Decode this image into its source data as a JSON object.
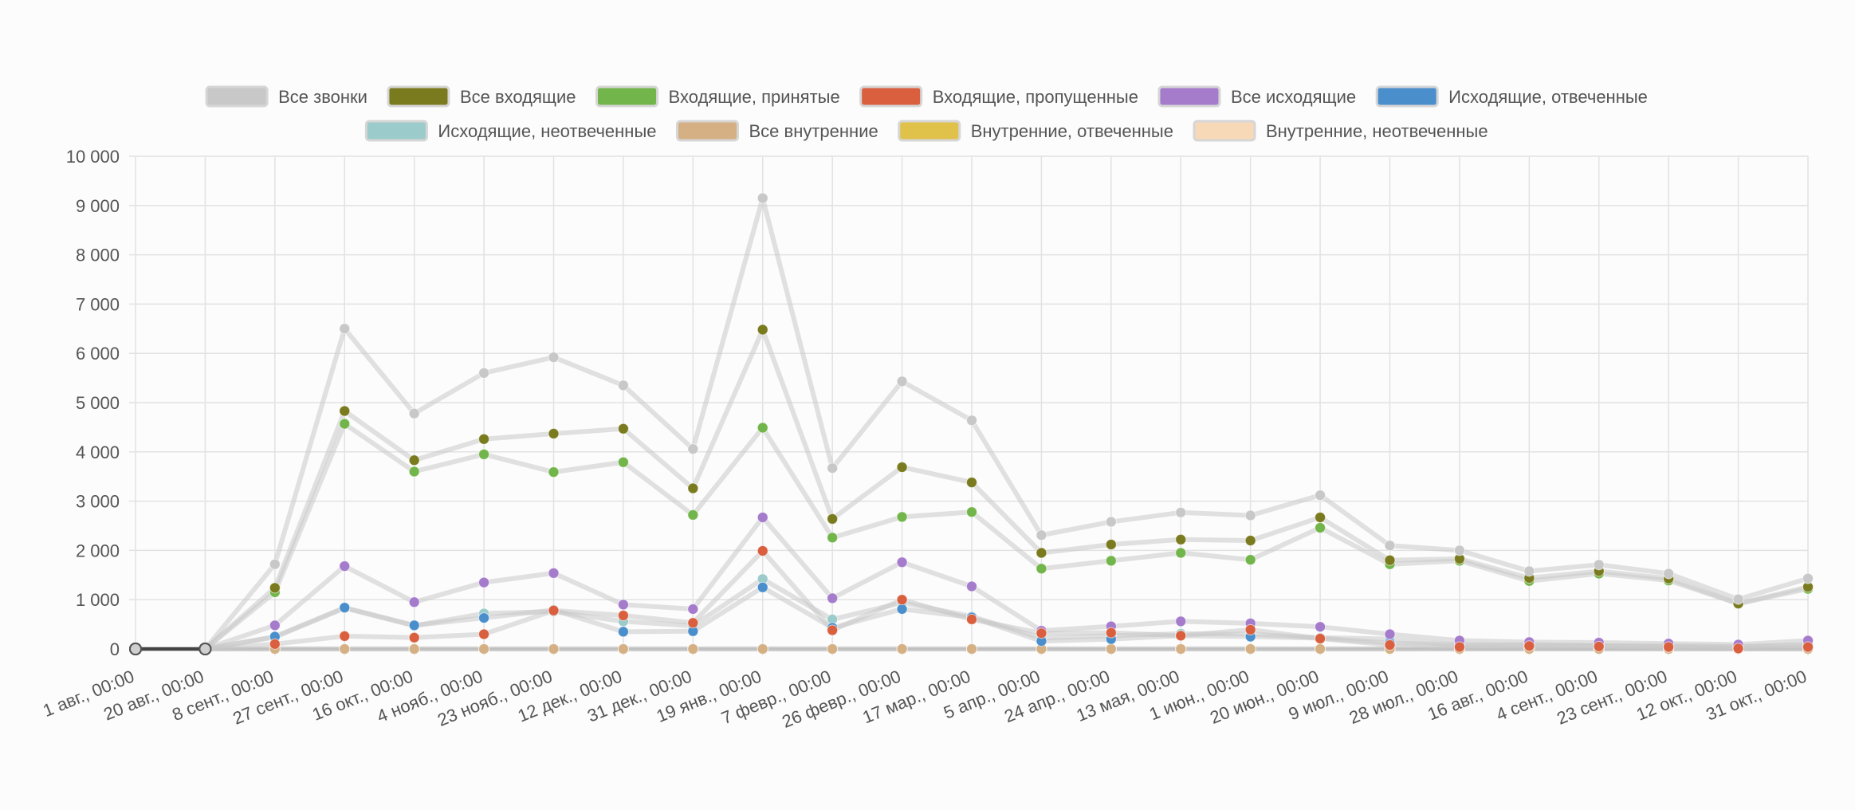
{
  "chart_data": {
    "type": "line",
    "title": "",
    "xlabel": "",
    "ylabel": "",
    "ylim": [
      0,
      10000
    ],
    "yticks": [
      0,
      1000,
      2000,
      3000,
      4000,
      5000,
      6000,
      7000,
      8000,
      9000,
      10000
    ],
    "ytick_labels": [
      "0",
      "1 000",
      "2 000",
      "3 000",
      "4 000",
      "5 000",
      "6 000",
      "7 000",
      "8 000",
      "9 000",
      "10 000"
    ],
    "grid": true,
    "legend_position": "top",
    "categories": [
      "1 авг., 00:00",
      "20 авг., 00:00",
      "8 сент., 00:00",
      "27 сент., 00:00",
      "16 окт., 00:00",
      "4 нояб., 00:00",
      "23 нояб., 00:00",
      "12 дек., 00:00",
      "31 дек., 00:00",
      "19 янв., 00:00",
      "7 февр., 00:00",
      "26 февр., 00:00",
      "17 мар., 00:00",
      "5 апр., 00:00",
      "24 апр., 00:00",
      "13 мая, 00:00",
      "1 июн., 00:00",
      "20 июн., 00:00",
      "9 июл., 00:00",
      "28 июл., 00:00",
      "16 авг., 00:00",
      "4 сент., 00:00",
      "23 сент., 00:00",
      "12 окт., 00:00",
      "31 окт., 00:00"
    ],
    "series": [
      {
        "name": "Все звонки",
        "color": "#c8c8c8",
        "values": [
          0,
          0,
          1720,
          6500,
          4780,
          5600,
          5920,
          5350,
          4060,
          9150,
          3670,
          5430,
          4640,
          2310,
          2580,
          2770,
          2710,
          3120,
          2100,
          2000,
          1580,
          1710,
          1530,
          1010,
          1430
        ]
      },
      {
        "name": "Все входящие",
        "color": "#7a7a1f",
        "values": [
          0,
          0,
          1240,
          4830,
          3830,
          4260,
          4370,
          4470,
          3260,
          6480,
          2640,
          3690,
          3380,
          1950,
          2120,
          2220,
          2200,
          2670,
          1800,
          1830,
          1440,
          1580,
          1430,
          920,
          1260
        ]
      },
      {
        "name": "Входящие, принятые",
        "color": "#72b54a",
        "values": [
          0,
          0,
          1150,
          4570,
          3600,
          3950,
          3590,
          3790,
          2720,
          4490,
          2260,
          2680,
          2780,
          1630,
          1790,
          1950,
          1810,
          2460,
          1720,
          1790,
          1380,
          1530,
          1390,
          920,
          1220
        ]
      },
      {
        "name": "Входящие, пропущенные",
        "color": "#d95f3e",
        "values": [
          0,
          0,
          100,
          260,
          230,
          300,
          780,
          680,
          530,
          1990,
          380,
          1000,
          600,
          320,
          330,
          270,
          390,
          210,
          80,
          40,
          60,
          50,
          40,
          10,
          40
        ]
      },
      {
        "name": "Все исходящие",
        "color": "#a57bcc",
        "values": [
          0,
          0,
          480,
          1680,
          950,
          1350,
          1540,
          900,
          810,
          2670,
          1030,
          1760,
          1270,
          370,
          460,
          560,
          520,
          450,
          300,
          170,
          140,
          130,
          110,
          90,
          170
        ]
      },
      {
        "name": "Исходящие, отвеченные",
        "color": "#4a8fcc",
        "values": [
          0,
          0,
          250,
          840,
          480,
          630,
          790,
          350,
          360,
          1250,
          430,
          810,
          640,
          160,
          200,
          270,
          250,
          220,
          120,
          90,
          90,
          70,
          70,
          50,
          80
        ]
      },
      {
        "name": "Исходящие, неотвеченные",
        "color": "#9ccbcb",
        "values": [
          0,
          0,
          240,
          830,
          470,
          720,
          760,
          560,
          470,
          1420,
          600,
          940,
          660,
          220,
          270,
          310,
          300,
          230,
          200,
          80,
          60,
          60,
          40,
          40,
          90
        ]
      },
      {
        "name": "Все внутренние",
        "color": "#d4b084",
        "values": [
          0,
          0,
          0,
          0,
          0,
          0,
          0,
          0,
          0,
          0,
          0,
          0,
          0,
          0,
          0,
          0,
          0,
          0,
          0,
          0,
          0,
          0,
          0,
          0,
          0
        ]
      },
      {
        "name": "Внутренние, отвеченные",
        "color": "#e0c14a",
        "values": [
          0,
          0,
          0,
          0,
          0,
          0,
          0,
          0,
          0,
          0,
          0,
          0,
          0,
          0,
          0,
          0,
          0,
          0,
          0,
          0,
          0,
          0,
          0,
          0,
          0
        ]
      },
      {
        "name": "Внутренние, неотвеченные",
        "color": "#f7d9b8",
        "values": [
          0,
          0,
          0,
          0,
          0,
          0,
          0,
          0,
          0,
          0,
          0,
          0,
          0,
          0,
          0,
          0,
          0,
          0,
          0,
          0,
          0,
          0,
          0,
          0,
          0
        ]
      }
    ]
  }
}
